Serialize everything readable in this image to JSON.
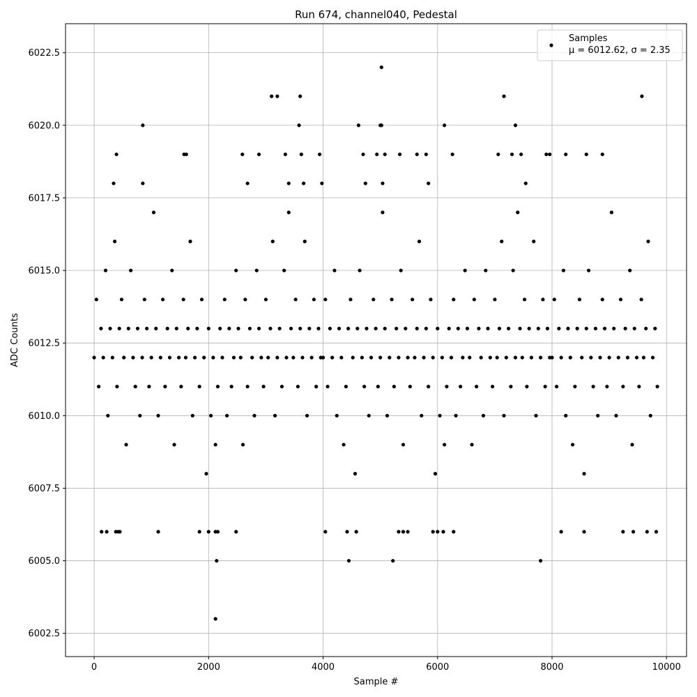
{
  "chart_data": {
    "type": "scatter",
    "title": "Run 674, channel040, Pedestal",
    "xlabel": "Sample #",
    "ylabel": "ADC Counts",
    "xlim": [
      -500,
      10350
    ],
    "ylim": [
      6001.7,
      6023.5
    ],
    "xticks": [
      0,
      2000,
      4000,
      6000,
      8000,
      10000
    ],
    "xtick_labels": [
      "0",
      "2000",
      "4000",
      "6000",
      "8000",
      "10000"
    ],
    "yticks": [
      6002.5,
      6005.0,
      6007.5,
      6010.0,
      6012.5,
      6015.0,
      6017.5,
      6020.0,
      6022.5
    ],
    "ytick_labels": [
      "6002.5",
      "6005.0",
      "6007.5",
      "6010.0",
      "6012.5",
      "6015.0",
      "6017.5",
      "6020.0",
      "6022.5"
    ],
    "grid": true,
    "marker_color": "#000000",
    "legend": {
      "position": "top-right",
      "entries": [
        {
          "label": "Samples",
          "stats": "μ = 6012.62, σ = 2.35"
        }
      ]
    },
    "series": [
      {
        "name": "Samples",
        "x": [
          0,
          40,
          80,
          120,
          160,
          200,
          240,
          280,
          320,
          360,
          400,
          440,
          480,
          520,
          560,
          600,
          640,
          680,
          720,
          760,
          800,
          840,
          880,
          920,
          960,
          1000,
          1040,
          1080,
          1120,
          1160,
          1200,
          1240,
          1280,
          1320,
          1360,
          1400,
          1440,
          1480,
          1520,
          1560,
          1600,
          1640,
          1680,
          1720,
          1760,
          1800,
          1840,
          1880,
          1920,
          1960,
          2000,
          2040,
          2080,
          2120,
          2160,
          2200,
          2240,
          2280,
          2320,
          2360,
          2400,
          2440,
          2480,
          2520,
          2560,
          2600,
          2640,
          2680,
          2720,
          2760,
          2800,
          2840,
          2880,
          2920,
          2960,
          3000,
          3040,
          3080,
          3120,
          3160,
          3200,
          3240,
          3280,
          3320,
          3360,
          3400,
          3440,
          3480,
          3520,
          3560,
          3600,
          3640,
          3680,
          3720,
          3760,
          3800,
          3840,
          3880,
          3920,
          3960,
          4000,
          4040,
          4080,
          4120,
          4160,
          4200,
          4240,
          4280,
          4320,
          4360,
          4400,
          4440,
          4480,
          4520,
          4560,
          4600,
          4640,
          4680,
          4720,
          4760,
          4800,
          4840,
          4880,
          4920,
          4960,
          5000,
          5040,
          5080,
          5120,
          5160,
          5200,
          5240,
          5280,
          5320,
          5360,
          5400,
          5440,
          5480,
          5520,
          5560,
          5600,
          5640,
          5680,
          5720,
          5760,
          5800,
          5840,
          5880,
          5920,
          5960,
          6000,
          6040,
          6080,
          6120,
          6160,
          6200,
          6240,
          6280,
          6320,
          6360,
          6400,
          6440,
          6480,
          6520,
          6560,
          6600,
          6640,
          6680,
          6720,
          6760,
          6800,
          6840,
          6880,
          6920,
          6960,
          7000,
          7040,
          7080,
          7120,
          7160,
          7200,
          7240,
          7280,
          7320,
          7360,
          7400,
          7440,
          7480,
          7520,
          7560,
          7600,
          7640,
          7680,
          7720,
          7760,
          7800,
          7840,
          7880,
          7920,
          7960,
          8000,
          8040,
          8080,
          8120,
          8160,
          8200,
          8240,
          8280,
          8320,
          8360,
          8400,
          8440,
          8480,
          8520,
          8560,
          8600,
          8640,
          8680,
          8720,
          8760,
          8800,
          8840,
          8880,
          8920,
          8960,
          9000,
          9040,
          9080,
          9120,
          9160,
          9200,
          9240,
          9280,
          9320,
          9360,
          9400,
          9440,
          9480,
          9520,
          9560,
          9600,
          9640,
          9680,
          9720,
          9760,
          9800,
          9840,
          130,
          220,
          380,
          420,
          450,
          1120,
          1840,
          2000,
          2120,
          2160,
          2480,
          4040,
          4420,
          4580,
          5320,
          5400,
          5480,
          5920,
          6000,
          6100,
          6280,
          8160,
          8560,
          9240,
          9420,
          9660,
          9820,
          2140,
          4450,
          5220,
          7800,
          2120,
          340,
          390,
          850,
          1570,
          1610,
          2590,
          2680,
          2880,
          3340,
          3400,
          3620,
          3660,
          3940,
          3980,
          4700,
          4740,
          4940,
          5040,
          5080,
          5340,
          5640,
          5800,
          5840,
          6260,
          7060,
          7300,
          7460,
          7540,
          7900,
          7960,
          8240,
          8600,
          8880,
          850,
          3580,
          4620,
          5000,
          5020,
          6120,
          7360,
          3100,
          3200,
          3600,
          7160,
          9570,
          5020
        ],
        "y": [
          6012,
          6014,
          6011,
          6013,
          6012,
          6015,
          6010,
          6013,
          6012,
          6016,
          6011,
          6013,
          6014,
          6012,
          6009,
          6013,
          6015,
          6012,
          6011,
          6013,
          6010,
          6012,
          6014,
          6013,
          6011,
          6012,
          6017,
          6013,
          6010,
          6012,
          6014,
          6011,
          6013,
          6012,
          6015,
          6009,
          6013,
          6012,
          6011,
          6014,
          6012,
          6013,
          6016,
          6010,
          6012,
          6013,
          6011,
          6014,
          6012,
          6008,
          6013,
          6010,
          6012,
          6009,
          6011,
          6013,
          6012,
          6014,
          6010,
          6013,
          6011,
          6012,
          6015,
          6013,
          6012,
          6009,
          6014,
          6011,
          6013,
          6012,
          6010,
          6015,
          6013,
          6012,
          6011,
          6014,
          6012,
          6013,
          6016,
          6010,
          6012,
          6013,
          6011,
          6015,
          6012,
          6017,
          6013,
          6012,
          6014,
          6011,
          6013,
          6012,
          6016,
          6010,
          6013,
          6012,
          6014,
          6011,
          6013,
          6012,
          6012,
          6014,
          6011,
          6013,
          6012,
          6015,
          6010,
          6013,
          6012,
          6009,
          6011,
          6013,
          6014,
          6012,
          6008,
          6013,
          6015,
          6012,
          6011,
          6013,
          6010,
          6012,
          6014,
          6013,
          6011,
          6012,
          6017,
          6013,
          6010,
          6012,
          6014,
          6011,
          6013,
          6012,
          6015,
          6009,
          6013,
          6012,
          6011,
          6014,
          6012,
          6013,
          6016,
          6010,
          6012,
          6013,
          6011,
          6014,
          6012,
          6008,
          6013,
          6010,
          6012,
          6009,
          6011,
          6013,
          6012,
          6014,
          6010,
          6013,
          6011,
          6012,
          6015,
          6013,
          6012,
          6009,
          6014,
          6011,
          6013,
          6012,
          6010,
          6015,
          6013,
          6012,
          6011,
          6014,
          6012,
          6013,
          6016,
          6010,
          6012,
          6013,
          6011,
          6015,
          6012,
          6017,
          6013,
          6012,
          6014,
          6011,
          6013,
          6012,
          6016,
          6010,
          6013,
          6012,
          6014,
          6011,
          6013,
          6012,
          6012,
          6014,
          6011,
          6013,
          6012,
          6015,
          6010,
          6013,
          6012,
          6009,
          6011,
          6013,
          6014,
          6012,
          6008,
          6013,
          6015,
          6012,
          6011,
          6013,
          6010,
          6012,
          6014,
          6013,
          6011,
          6012,
          6017,
          6013,
          6010,
          6012,
          6014,
          6011,
          6013,
          6012,
          6015,
          6009,
          6013,
          6012,
          6011,
          6014,
          6012,
          6013,
          6016,
          6010,
          6012,
          6013,
          6011,
          6006,
          6006,
          6006,
          6006,
          6006,
          6006,
          6006,
          6006,
          6006,
          6006,
          6006,
          6006,
          6006,
          6006,
          6006,
          6006,
          6006,
          6006,
          6006,
          6006,
          6006,
          6006,
          6006,
          6006,
          6006,
          6006,
          6006,
          6005,
          6005,
          6005,
          6005,
          6003,
          6018,
          6019,
          6018,
          6019,
          6019,
          6019,
          6018,
          6019,
          6019,
          6018,
          6019,
          6018,
          6019,
          6018,
          6019,
          6018,
          6019,
          6018,
          6019,
          6019,
          6019,
          6019,
          6018,
          6019,
          6019,
          6019,
          6019,
          6018,
          6019,
          6019,
          6019,
          6019,
          6019,
          6020,
          6020,
          6020,
          6020,
          6020,
          6020,
          6020,
          6021,
          6021,
          6021,
          6021,
          6021,
          6022
        ]
      }
    ]
  }
}
